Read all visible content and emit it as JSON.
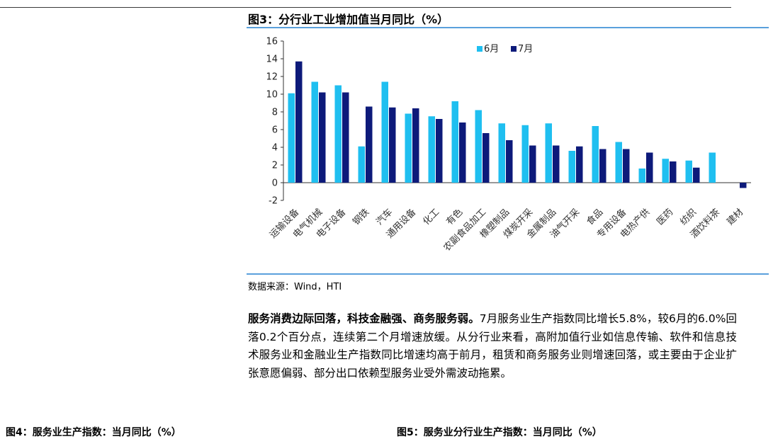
{
  "figure": {
    "title": "图3：分行业工业增加值当月同比（%）",
    "source": "数据来源：Wind，HTI"
  },
  "chart_data": {
    "type": "bar",
    "categories": [
      "运输设备",
      "电气机械",
      "电子设备",
      "钢铁",
      "汽车",
      "通用设备",
      "化工",
      "有色",
      "农副食品加工",
      "橡塑制品",
      "煤炭开采",
      "金属制品",
      "油气开采",
      "食品",
      "专用设备",
      "电热产供",
      "医药",
      "纺织",
      "酒饮料茶",
      "建材"
    ],
    "series": [
      {
        "name": "6月",
        "color": "#1fbff0",
        "values": [
          10.1,
          11.4,
          11.0,
          4.1,
          11.4,
          7.8,
          7.5,
          9.2,
          8.2,
          6.7,
          6.5,
          6.7,
          3.6,
          6.4,
          4.6,
          1.6,
          2.7,
          2.5,
          3.4,
          0.0
        ]
      },
      {
        "name": "7月",
        "color": "#0d1a7a",
        "values": [
          13.7,
          10.2,
          10.2,
          8.6,
          8.5,
          8.4,
          7.2,
          6.8,
          5.6,
          4.8,
          4.2,
          4.2,
          4.1,
          3.8,
          3.8,
          3.4,
          2.4,
          1.7,
          0.0,
          -0.6
        ]
      }
    ],
    "yticks": [
      "16",
      "14",
      "12",
      "10",
      "8",
      "6",
      "4",
      "2",
      "0",
      "-2"
    ],
    "ylim": [
      -2,
      16
    ],
    "xlabel": "",
    "ylabel": "",
    "legend": "top-center",
    "grid": false
  },
  "body": {
    "lead": "服务消费边际回落，科技金融强、商务服务弱。",
    "text": "7月服务业生产指数同比增长5.8%，较6月的6.0%回落0.2个百分点，连续第二个月增速放缓。从分行业来看，高附加值行业如信息传输、软件和信息技术服务业和金融业生产指数同比增速均高于前月，租赁和商务服务业则增速回落，或主要由于企业扩张意愿偏弱、部分出口依赖型服务业受外需波动拖累。"
  },
  "next_captions": {
    "left": "图4：服务业生产指数：当月同比（%）",
    "right": "图5：服务业分行业生产指数：当月同比（%）"
  }
}
